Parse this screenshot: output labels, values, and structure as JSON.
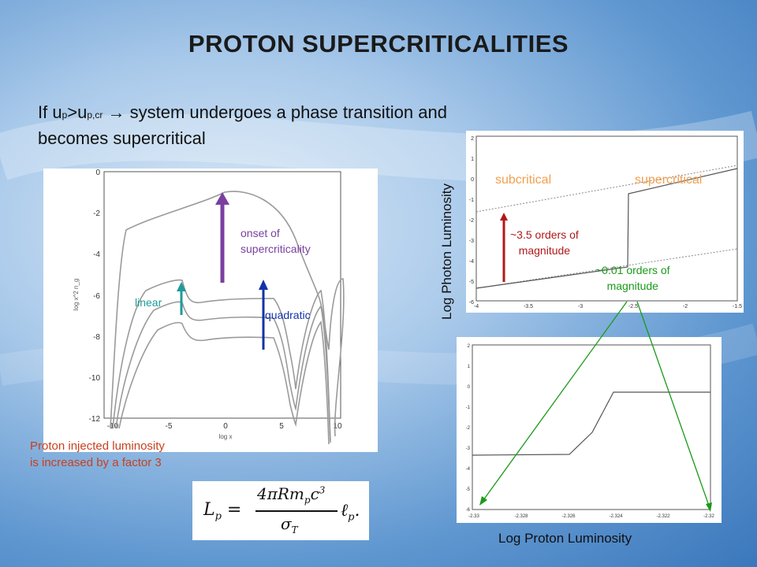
{
  "title": "PROTON SUPERCRITICALITIES",
  "intro": {
    "prefix": "If u",
    "sub1": "p",
    "mid": ">u",
    "sub2": "p,cr",
    "arrow": "→",
    "rest": " system undergoes a phase transition and becomes supercritical"
  },
  "left_plot": {
    "ylabel": "log x^2 n_g",
    "xlabel": "log x",
    "x_ticks": [
      "-10",
      "-5",
      "0",
      "5",
      "10"
    ],
    "y_ticks": [
      "0",
      "-2",
      "-4",
      "-6",
      "-8",
      "-10",
      "-12"
    ],
    "annot_onset": [
      "onset of",
      "supercriticality"
    ],
    "annot_linear": "linear",
    "annot_quadratic": "quadratic",
    "colors": {
      "onset": "#7a3fa0",
      "linear": "#1f9b9b",
      "quadratic": "#1432a8"
    }
  },
  "caption": [
    "Proton injected luminosity",
    "is increased by a factor 3"
  ],
  "formula": {
    "lhs": "L",
    "lhs_sub": "p",
    "num": "4πRm",
    "num_sub": "p",
    "num_c": "c",
    "num_sup": "3",
    "den": "σ",
    "den_sub": "T",
    "rhs": "ℓ",
    "rhs_sub": "p",
    "end": "."
  },
  "top_right_plot": {
    "x_ticks": [
      "-4",
      "-3.5",
      "-3",
      "-2.5",
      "-2",
      "-1.5"
    ],
    "y_ticks": [
      "2",
      "1",
      "0",
      "-1",
      "-2",
      "-3",
      "-4",
      "-5",
      "-6"
    ],
    "label_sub": "subcritical",
    "label_super": "supercritical",
    "annot_35": [
      "~3.5 orders of",
      "magnitude"
    ],
    "annot_001": [
      "~0.01 orders of",
      "magnitude"
    ],
    "colors": {
      "regime": "#f0a050",
      "red_arrow": "#b01818",
      "green": "#1a9a1a"
    }
  },
  "bottom_right_plot": {
    "x_ticks": [
      "-2.33",
      "-2.328",
      "-2.326",
      "-2.324",
      "-2.322",
      "-2.32"
    ],
    "y_ticks": [
      "2",
      "1",
      "0",
      "-1",
      "-2",
      "-3",
      "-4",
      "-5",
      "-6"
    ]
  },
  "axis_labels": {
    "vertical": "Log Photon Luminosity",
    "horizontal": "Log Proton Luminosity"
  }
}
